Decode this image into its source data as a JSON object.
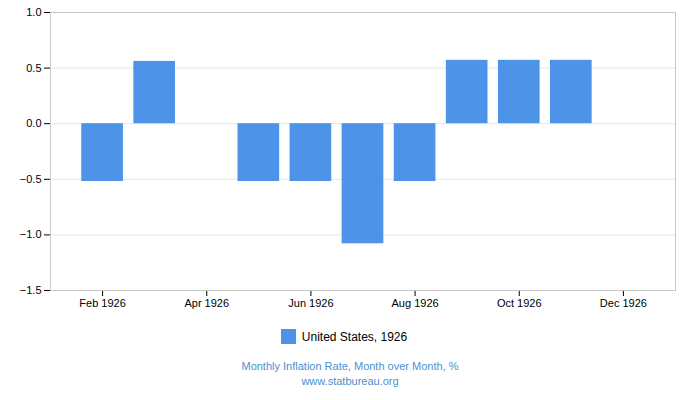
{
  "chart_data": {
    "type": "bar",
    "x": [
      2,
      3,
      5,
      6,
      7,
      8,
      9,
      10,
      11
    ],
    "series": [
      {
        "name": "United States, 1926",
        "color": "#4d94e8",
        "values": [
          -0.52,
          0.56,
          -0.52,
          -0.52,
          -1.08,
          -0.52,
          0.57,
          0.57,
          0.57
        ]
      }
    ],
    "xlim": [
      1,
      13
    ],
    "xticks": [
      {
        "value": 2,
        "label": "Feb 1926"
      },
      {
        "value": 4,
        "label": "Apr 1926"
      },
      {
        "value": 6,
        "label": "Jun 1926"
      },
      {
        "value": 8,
        "label": "Aug 1926"
      },
      {
        "value": 10,
        "label": "Oct 1926"
      },
      {
        "value": 12,
        "label": "Dec 1926"
      }
    ],
    "ylim": [
      -1.5,
      1.0
    ],
    "yticks": [
      {
        "value": -1.5,
        "label": "−1.5"
      },
      {
        "value": -1.0,
        "label": "−1.0"
      },
      {
        "value": -0.5,
        "label": "−0.5"
      },
      {
        "value": 0,
        "label": "0.0"
      },
      {
        "value": 0.5,
        "label": "0.5"
      },
      {
        "value": 1.0,
        "label": "1.0"
      }
    ],
    "grid": true,
    "legend": "bottom",
    "annotations": [
      "Monthly Inflation Rate, Month over Month, %",
      "www.statbureau.org"
    ]
  }
}
